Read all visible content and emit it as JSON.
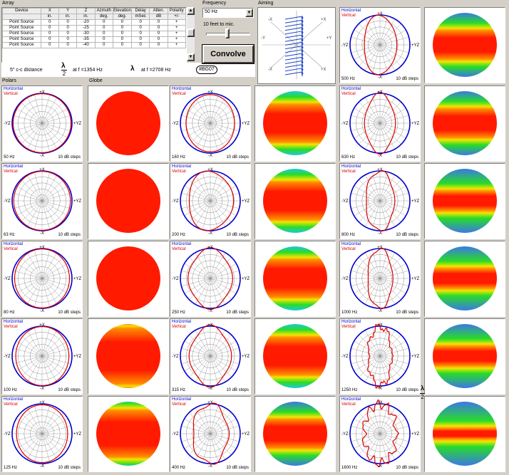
{
  "group_labels": {
    "array": "Array",
    "frequency": "Frequency",
    "aiming": "Aiming",
    "polars": "Polars",
    "globe": "Globe"
  },
  "array_table": {
    "headers": [
      [
        "Device",
        ""
      ],
      [
        "X",
        "in."
      ],
      [
        "Y",
        "in."
      ],
      [
        "Z",
        "in."
      ],
      [
        "Azmuth",
        "deg."
      ],
      [
        "Elevation",
        "deg."
      ],
      [
        "Delay",
        "mSec"
      ],
      [
        "Atten.",
        "dB"
      ],
      [
        "Polarity",
        "+/-"
      ]
    ],
    "rows": [
      [
        "Point Source",
        "0",
        "0",
        "-20",
        "0",
        "0",
        "0",
        "0",
        "+"
      ],
      [
        "Point Source",
        "0",
        "0",
        "-25",
        "0",
        "0",
        "0",
        "0",
        "+"
      ],
      [
        "Point Source",
        "0",
        "0",
        "-30",
        "0",
        "0",
        "0",
        "0",
        "+"
      ],
      [
        "Point Source",
        "0",
        "0",
        "-35",
        "0",
        "0",
        "0",
        "0",
        "+"
      ],
      [
        "Point Source",
        "0",
        "0",
        "-40",
        "0",
        "0",
        "0",
        "0",
        "+"
      ]
    ]
  },
  "info": {
    "spacing": "5\" c-c distance",
    "lambda": "λ",
    "half_den": "2",
    "at1": "at f =1354 Hz",
    "at2": "at f =2708 Hz",
    "badge": "#BG07"
  },
  "frequency": {
    "selected": "50 Hz",
    "slider_label": "10 feet to mic.",
    "convolve": "Convolve"
  },
  "polar_labels": {
    "horizontal": "Horizontal",
    "vertical": "Vertical",
    "top": "+X",
    "bottom": "-X",
    "left": "-YZ",
    "right": "+YZ",
    "steps": "10 dB steps"
  },
  "side_lambda": {
    "lambda": "λ",
    "den": "2"
  },
  "polars": [
    {
      "f": "500 Hz",
      "a": 0.55,
      "n": 3,
      "amp": 0.04
    },
    {
      "f": "50 Hz",
      "a": 0.98,
      "n": 0,
      "amp": 0
    },
    {
      "f": "160 Hz",
      "a": 0.8,
      "n": 2,
      "amp": 0.03
    },
    {
      "f": "630 Hz",
      "a": 0.5,
      "n": 4,
      "amp": 0.05
    },
    {
      "f": "63 Hz",
      "a": 0.96,
      "n": 0,
      "amp": 0
    },
    {
      "f": "200 Hz",
      "a": 0.75,
      "n": 3,
      "amp": 0.05
    },
    {
      "f": "800 Hz",
      "a": 0.48,
      "n": 5,
      "amp": 0.05
    },
    {
      "f": "80 Hz",
      "a": 0.93,
      "n": 0,
      "amp": 0
    },
    {
      "f": "250 Hz",
      "a": 0.72,
      "n": 4,
      "amp": 0.05
    },
    {
      "f": "1000 Hz",
      "a": 0.42,
      "n": 5,
      "amp": 0.05
    },
    {
      "f": "100 Hz",
      "a": 0.9,
      "n": 1,
      "amp": 0.01
    },
    {
      "f": "315 Hz",
      "a": 0.68,
      "n": 4,
      "amp": 0.06
    },
    {
      "f": "1250 Hz",
      "a": 0.4,
      "n": 7,
      "amp": 0.1
    },
    {
      "f": "125 Hz",
      "a": 0.85,
      "n": 2,
      "amp": 0.02
    },
    {
      "f": "400 Hz",
      "a": 0.6,
      "n": 5,
      "amp": 0.07
    },
    {
      "f": "1600 Hz",
      "a": 0.55,
      "n": 11,
      "amp": 0.14
    }
  ],
  "colors": {
    "horizontal": "#0000cc",
    "vertical": "#dd0000",
    "grid": "#8c8c8c",
    "panel": "#d4d0c8",
    "red": "#ff1a00",
    "orange": "#ff8c00",
    "yellow": "#f0e600",
    "green": "#28dc28",
    "cyan": "#1ec8dc",
    "blue": "#3c78e6"
  }
}
